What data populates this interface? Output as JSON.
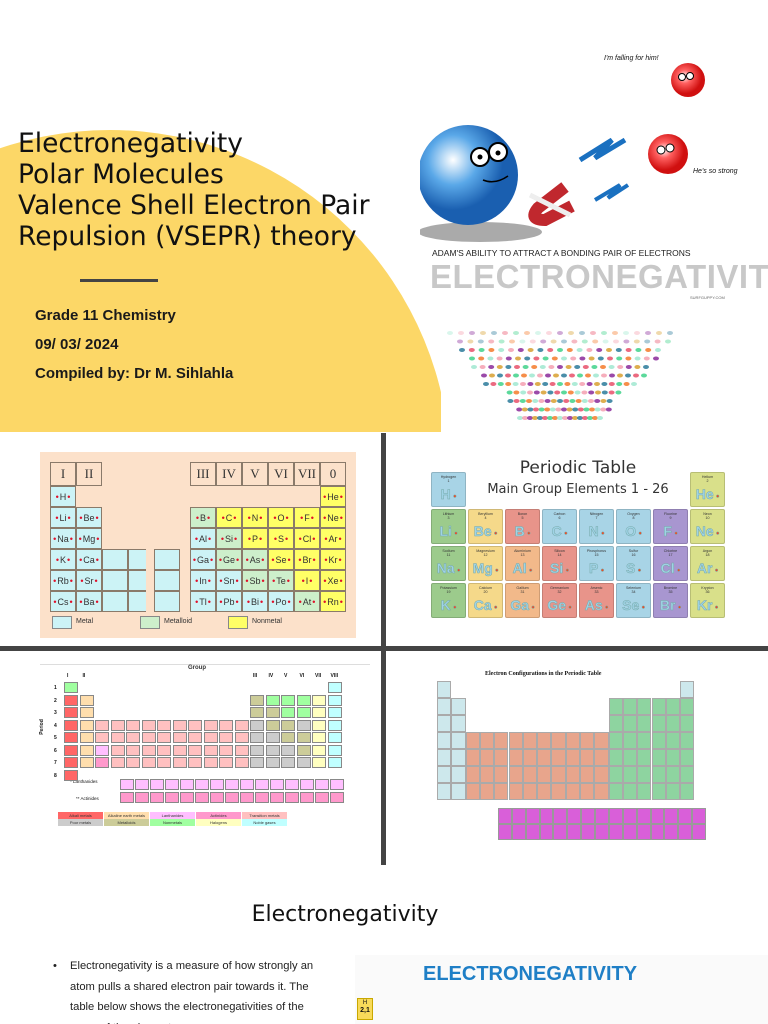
{
  "title_slide": {
    "title_lines": [
      "Electronegativity",
      "Polar Molecules",
      "Valence Shell Electron Pair",
      "Repulsion (VSEPR) theory"
    ],
    "subtitle_lines": [
      "Grade 11 Chemistry",
      "09/ 03/ 2024",
      "Compiled by: Dr M. Sihlahla"
    ],
    "accent_color": "#FCD767",
    "illustration": {
      "speech_1": "I'm falling for him!",
      "speech_2": "He's so strong",
      "caption": "ADAM'S ABILITY TO ATTRACT A BONDING PAIR OF ELECTRONS",
      "big_word": "ELECTRONEGATIVITY",
      "credit": "SURFGUPPY.COM"
    }
  },
  "table1": {
    "headers": [
      "I",
      "II",
      "III",
      "IV",
      "V",
      "VI",
      "VII",
      "0"
    ],
    "rows": [
      [
        [
          "H",
          "m"
        ],
        [
          "",
          ""
        ],
        [
          "",
          ""
        ],
        [
          "",
          ""
        ],
        [
          "",
          ""
        ],
        [
          "",
          ""
        ],
        [
          "",
          ""
        ],
        [
          "He",
          "n"
        ]
      ],
      [
        [
          "Li",
          "m"
        ],
        [
          "Be",
          "m"
        ],
        [
          "B",
          "d"
        ],
        [
          "C",
          "n"
        ],
        [
          "N",
          "n"
        ],
        [
          "O",
          "n"
        ],
        [
          "F",
          "n"
        ],
        [
          "Ne",
          "n"
        ]
      ],
      [
        [
          "Na",
          "m"
        ],
        [
          "Mg",
          "m"
        ],
        [
          "Al",
          "m"
        ],
        [
          "Si",
          "d"
        ],
        [
          "P",
          "n"
        ],
        [
          "S",
          "n"
        ],
        [
          "Cl",
          "n"
        ],
        [
          "Ar",
          "n"
        ]
      ],
      [
        [
          "K",
          "m"
        ],
        [
          "Ca",
          "m"
        ],
        [
          "Ga",
          "m"
        ],
        [
          "Ge",
          "d"
        ],
        [
          "As",
          "d"
        ],
        [
          "Se",
          "n"
        ],
        [
          "Br",
          "n"
        ],
        [
          "Kr",
          "n"
        ]
      ],
      [
        [
          "Rb",
          "m"
        ],
        [
          "Sr",
          "m"
        ],
        [
          "In",
          "m"
        ],
        [
          "Sn",
          "m"
        ],
        [
          "Sb",
          "d"
        ],
        [
          "Te",
          "d"
        ],
        [
          "I",
          "n"
        ],
        [
          "Xe",
          "n"
        ]
      ],
      [
        [
          "Cs",
          "m"
        ],
        [
          "Ba",
          "m"
        ],
        [
          "Tl",
          "m"
        ],
        [
          "Pb",
          "m"
        ],
        [
          "Bi",
          "m"
        ],
        [
          "Po",
          "m"
        ],
        [
          "At",
          "d"
        ],
        [
          "Rn",
          "n"
        ]
      ]
    ],
    "legend": [
      {
        "label": "Metal",
        "color": "#CCF3F6"
      },
      {
        "label": "Metalloid",
        "color": "#CDEFCB"
      },
      {
        "label": "Nonmetal",
        "color": "#FFFF66"
      }
    ]
  },
  "table2": {
    "title": "Periodic Table",
    "subtitle": "Main Group Elements 1 - 26",
    "rows": [
      [
        [
          "Hydrogen",
          "1",
          "H",
          "#A8D4E6"
        ],
        null,
        null,
        null,
        null,
        null,
        null,
        [
          "Helium",
          "2",
          "He",
          "#D9E08A"
        ]
      ],
      [
        [
          "Lithium",
          "3",
          "Li",
          "#9CCB8C"
        ],
        [
          "Beryllium",
          "4",
          "Be",
          "#F5D98A"
        ],
        [
          "Boron",
          "5",
          "B",
          "#E8948A"
        ],
        [
          "Carbon",
          "6",
          "C",
          "#A8D4E6"
        ],
        [
          "Nitrogen",
          "7",
          "N",
          "#A8D4E6"
        ],
        [
          "Oxygen",
          "8",
          "O",
          "#A8D4E6"
        ],
        [
          "Fluorine",
          "9",
          "F",
          "#A896D0"
        ],
        [
          "Neon",
          "10",
          "Ne",
          "#D9E08A"
        ]
      ],
      [
        [
          "Sodium",
          "11",
          "Na",
          "#9CCB8C"
        ],
        [
          "Magnesium",
          "12",
          "Mg",
          "#F5D98A"
        ],
        [
          "Aluminium",
          "13",
          "Al",
          "#F2B98A"
        ],
        [
          "Silicon",
          "14",
          "Si",
          "#E8948A"
        ],
        [
          "Phosphorus",
          "15",
          "P",
          "#A8D4E6"
        ],
        [
          "Sulfur",
          "16",
          "S",
          "#A8D4E6"
        ],
        [
          "Chlorine",
          "17",
          "Cl",
          "#A896D0"
        ],
        [
          "Argon",
          "18",
          "Ar",
          "#D9E08A"
        ]
      ],
      [
        [
          "Potassium",
          "19",
          "K",
          "#9CCB8C"
        ],
        [
          "Calcium",
          "20",
          "Ca",
          "#F5D98A"
        ],
        [
          "Gallium",
          "31",
          "Ga",
          "#F2B98A"
        ],
        [
          "Germanium",
          "32",
          "Ge",
          "#E8948A"
        ],
        [
          "Arsenic",
          "33",
          "As",
          "#E8948A"
        ],
        [
          "Selenium",
          "34",
          "Se",
          "#A8D4E6"
        ],
        [
          "Bromine",
          "35",
          "Br",
          "#A896D0"
        ],
        [
          "Krypton",
          "36",
          "Kr",
          "#D9E08A"
        ]
      ]
    ]
  },
  "table3": {
    "title": "Group",
    "period_label": "Period",
    "group_labels": [
      "I",
      "II",
      "III",
      "IV",
      "V",
      "VI",
      "VII",
      "VIII"
    ],
    "period_numbers": [
      "1",
      "2",
      "3",
      "4",
      "5",
      "6",
      "7",
      "8"
    ],
    "lanthanides_label": "* Lanthanides",
    "actinides_label": "** Actinides",
    "legend": [
      {
        "label": "Alkali metals",
        "color": "#FF6666"
      },
      {
        "label": "Alkaline earth metals",
        "color": "#FFDEAD"
      },
      {
        "label": "Lanthanides",
        "color": "#FFBFFF"
      },
      {
        "label": "Actinides",
        "color": "#FF99CC"
      },
      {
        "label": "Transition metals",
        "color": "#FFC0C0"
      },
      {
        "label": "Poor metals",
        "color": "#CCCCCC"
      },
      {
        "label": "Metalloids",
        "color": "#CCCC99"
      },
      {
        "label": "Nonmetals",
        "color": "#A0FFA0"
      },
      {
        "label": "Halogens",
        "color": "#FFFFC0"
      },
      {
        "label": "Noble gases",
        "color": "#C0FFFF"
      }
    ]
  },
  "table4": {
    "title": "Electron Configurations in the Periodic Table",
    "colors": {
      "s": "#CDE8EC",
      "d": "#E8A58C",
      "p": "#8ED4A0",
      "f": "#D95FD9"
    }
  },
  "slide_electronegativity": {
    "heading": "Electronegativity",
    "bullet": "Electronegativity is a measure of how strongly an atom pulls a shared electron pair towards it. The table below shows the electronegativities of the some of the elements",
    "image_title": "ELECTRONEGATIVITY",
    "h_symbol": "H",
    "h_value": "2,1"
  },
  "colors": {
    "divider": "#444444"
  }
}
